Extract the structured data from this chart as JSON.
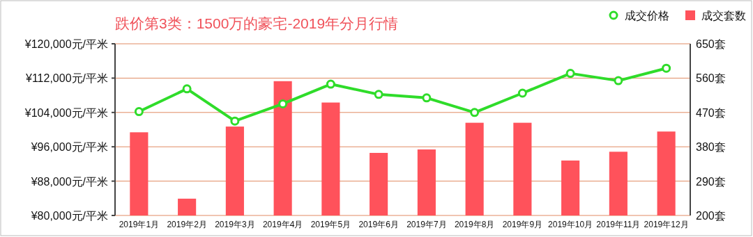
{
  "chart_data": {
    "type": "bar",
    "title": "跌价第3类：1500万的豪宅-2019年分月行情",
    "categories": [
      "2019年1月",
      "2019年2月",
      "2019年3月",
      "2019年4月",
      "2019年5月",
      "2019年6月",
      "2019年7月",
      "2019年8月",
      "2019年9月",
      "2019年10月",
      "2019年11月",
      "2019年12月"
    ],
    "series": [
      {
        "name": "成交价格",
        "type": "line",
        "axis": "y",
        "color": "#2fdc2a",
        "marker": "circle",
        "values": [
          104200,
          109500,
          102000,
          106000,
          110600,
          108200,
          107400,
          104000,
          108500,
          113100,
          111400,
          114300
        ]
      },
      {
        "name": "成交套数",
        "axis": "y2",
        "color": "#ff525b",
        "values": [
          418,
          244,
          433,
          552,
          496,
          364,
          373,
          443,
          443,
          344,
          367,
          420
        ]
      }
    ],
    "ylim": [
      80000,
      120000
    ],
    "yticks": [
      {
        "value": 80000,
        "label": "¥80,000元/平米"
      },
      {
        "value": 88000,
        "label": "¥88,000元/平米"
      },
      {
        "value": 96000,
        "label": "¥96,000元/平米"
      },
      {
        "value": 104000,
        "label": "¥104,000元/平米"
      },
      {
        "value": 112000,
        "label": "¥112,000元/平米"
      },
      {
        "value": 120000,
        "label": "¥120,000元/平米"
      }
    ],
    "y2lim": [
      200,
      650
    ],
    "y2ticks": [
      {
        "value": 200,
        "label": "200套"
      },
      {
        "value": 290,
        "label": "290套"
      },
      {
        "value": 380,
        "label": "380套"
      },
      {
        "value": 470,
        "label": "470套"
      },
      {
        "value": 560,
        "label": "560套"
      },
      {
        "value": 650,
        "label": "650套"
      }
    ],
    "grid": "y",
    "legend": "top right"
  }
}
